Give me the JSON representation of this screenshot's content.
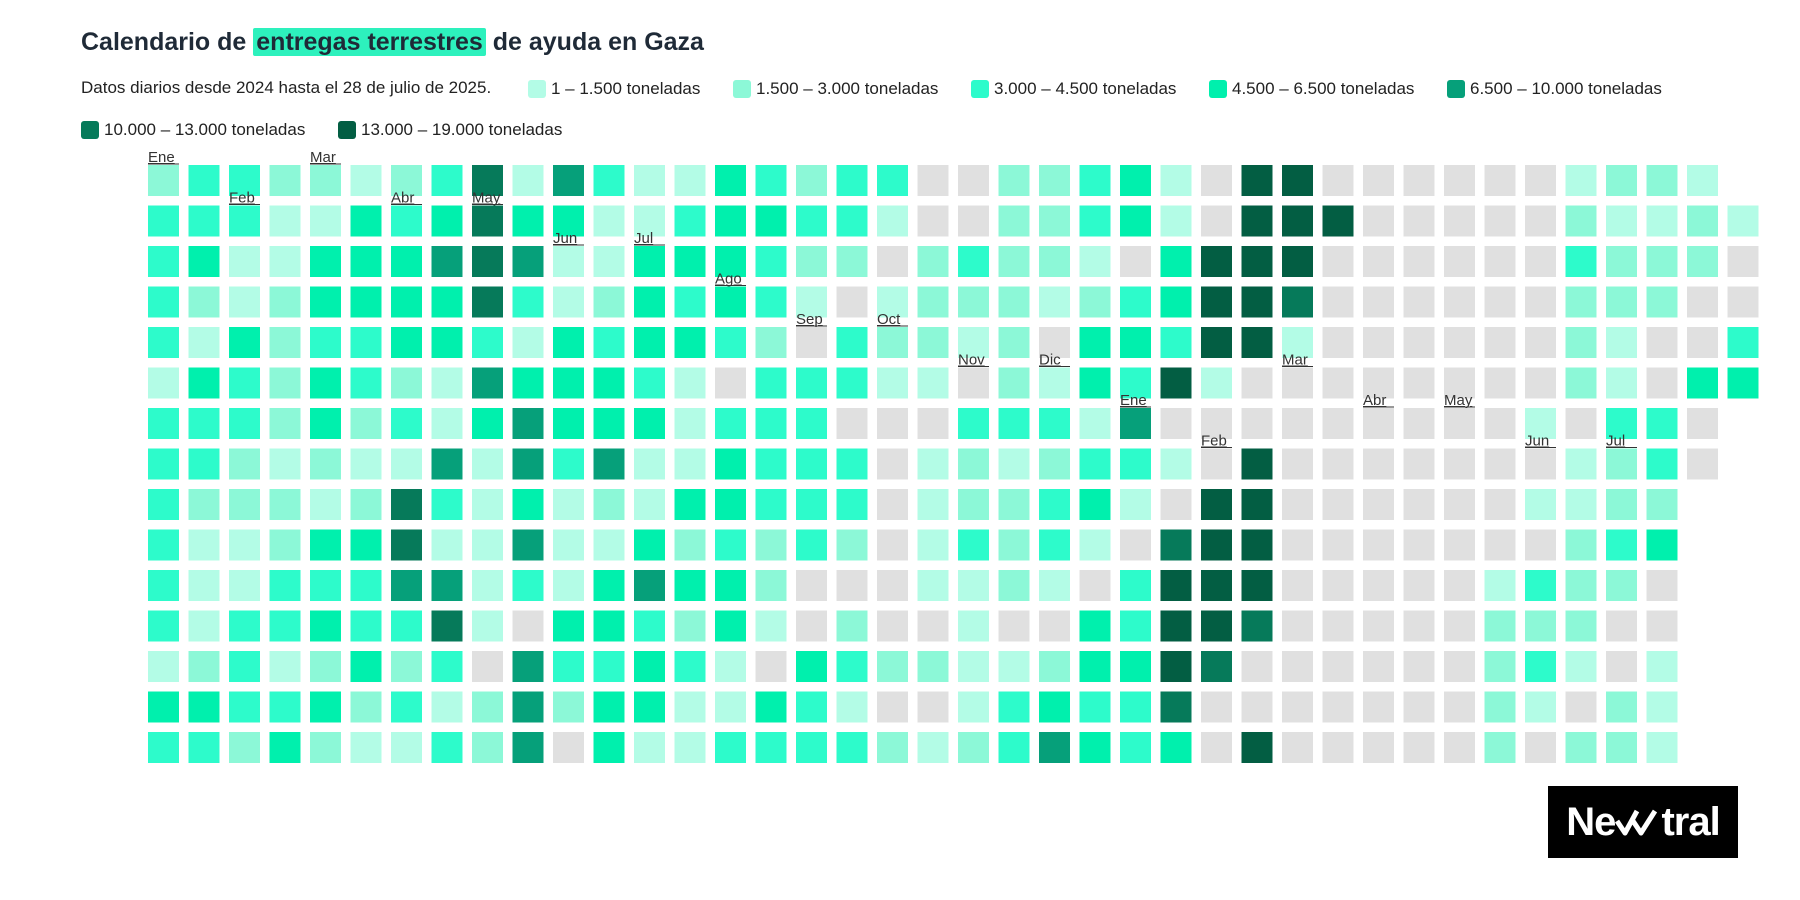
{
  "header": {
    "title_before": "Calendario de",
    "title_highlight": "entregas terrestres",
    "title_after": "de ayuda en Gaza",
    "subtitle": "Datos diarios desde 2024 hasta el 28 de julio de 2025."
  },
  "colors": {
    "highlight": "#2df1bd",
    "no_data": "#e0e0e0",
    "bins": [
      "#b3fce6",
      "#8cf8d7",
      "#2dfbcb",
      "#00f0ad",
      "#06a07a",
      "#067a5a",
      "#035e43"
    ]
  },
  "legend": [
    {
      "label": "1 – 1.500 toneladas",
      "color": "#b3fce6"
    },
    {
      "label": "1.500 – 3.000 toneladas",
      "color": "#8cf8d7"
    },
    {
      "label": "3.000 – 4.500 toneladas",
      "color": "#2dfbcb"
    },
    {
      "label": "4.500 – 6.500 toneladas",
      "color": "#00f0ad"
    },
    {
      "label": "6.500 – 10.000 toneladas",
      "color": "#06a07a"
    },
    {
      "label": "10.000 – 13.000 toneladas",
      "color": "#067a5a"
    },
    {
      "label": "13.000 – 19.000 toneladas",
      "color": "#035e43"
    }
  ],
  "chart_data": {
    "type": "heatmap",
    "title": "Calendario de entregas terrestres de ayuda en Gaza",
    "subtitle": "Datos diarios desde 2024 hasta el 28 de julio de 2025.",
    "units": "toneladas",
    "bins": [
      "1 – 1.500",
      "1.500 – 3.000",
      "3.000 – 4.500",
      "4.500 – 6.500",
      "6.500 – 10.000",
      "10.000 – 13.000",
      "13.000 – 19.000"
    ],
    "encoding": "grid[row][column] = bin index (0 = sin datos, 1-7 = rango de toneladas); -1 = sin celda",
    "month_labels": [
      {
        "label": "Ene",
        "col": 0,
        "row": 0
      },
      {
        "label": "Feb",
        "col": 2,
        "row": 1
      },
      {
        "label": "Mar",
        "col": 4,
        "row": 0
      },
      {
        "label": "Abr",
        "col": 6,
        "row": 1
      },
      {
        "label": "May",
        "col": 8,
        "row": 1
      },
      {
        "label": "Jun",
        "col": 10,
        "row": 2
      },
      {
        "label": "Jul",
        "col": 12,
        "row": 2
      },
      {
        "label": "Ago",
        "col": 14,
        "row": 3
      },
      {
        "label": "Sep",
        "col": 16,
        "row": 4
      },
      {
        "label": "Oct",
        "col": 18,
        "row": 4
      },
      {
        "label": "Nov",
        "col": 20,
        "row": 5
      },
      {
        "label": "Dic",
        "col": 22,
        "row": 5
      },
      {
        "label": "Ene",
        "col": 24,
        "row": 6
      },
      {
        "label": "Feb",
        "col": 26,
        "row": 7
      },
      {
        "label": "Mar",
        "col": 28,
        "row": 5
      },
      {
        "label": "Abr",
        "col": 30,
        "row": 6
      },
      {
        "label": "May",
        "col": 32,
        "row": 6
      },
      {
        "label": "Jun",
        "col": 34,
        "row": 7
      },
      {
        "label": "Jul",
        "col": 36,
        "row": 7
      }
    ],
    "grid": [
      [
        2,
        3,
        3,
        2,
        2,
        1,
        2,
        3,
        6,
        1,
        5,
        3,
        1,
        1,
        4,
        3,
        2,
        3,
        3,
        0,
        0,
        2,
        2,
        3,
        4,
        1,
        0,
        7,
        7,
        0,
        0,
        0,
        0,
        0,
        0,
        1,
        2,
        2,
        1
      ],
      [
        3,
        3,
        3,
        1,
        1,
        4,
        3,
        4,
        6,
        4,
        4,
        1,
        1,
        3,
        4,
        4,
        3,
        3,
        1,
        0,
        0,
        2,
        2,
        3,
        4,
        1,
        0,
        7,
        7,
        7,
        0,
        0,
        0,
        0,
        0,
        2,
        1,
        1,
        2,
        1
      ],
      [
        3,
        4,
        1,
        1,
        4,
        4,
        4,
        5,
        6,
        5,
        1,
        1,
        4,
        4,
        4,
        3,
        2,
        2,
        0,
        2,
        3,
        2,
        2,
        1,
        0,
        4,
        7,
        7,
        7,
        0,
        0,
        0,
        0,
        0,
        0,
        3,
        2,
        2,
        2,
        0
      ],
      [
        3,
        2,
        1,
        2,
        4,
        4,
        4,
        4,
        6,
        3,
        1,
        2,
        4,
        3,
        4,
        3,
        1,
        0,
        1,
        2,
        2,
        2,
        1,
        2,
        3,
        4,
        7,
        7,
        6,
        0,
        0,
        0,
        0,
        0,
        0,
        2,
        2,
        2,
        0,
        0
      ],
      [
        3,
        1,
        4,
        2,
        3,
        3,
        4,
        4,
        3,
        1,
        4,
        3,
        4,
        4,
        3,
        2,
        0,
        3,
        2,
        2,
        1,
        2,
        0,
        4,
        4,
        3,
        7,
        7,
        1,
        0,
        0,
        0,
        0,
        0,
        0,
        2,
        1,
        0,
        0,
        3
      ],
      [
        1,
        4,
        3,
        2,
        4,
        3,
        2,
        1,
        5,
        4,
        4,
        4,
        3,
        1,
        0,
        3,
        3,
        3,
        1,
        1,
        0,
        2,
        1,
        4,
        3,
        7,
        1,
        0,
        0,
        0,
        0,
        0,
        0,
        0,
        0,
        2,
        1,
        0,
        4,
        4
      ],
      [
        3,
        3,
        3,
        2,
        4,
        2,
        3,
        1,
        4,
        5,
        4,
        4,
        4,
        1,
        3,
        3,
        3,
        0,
        0,
        0,
        3,
        3,
        3,
        1,
        5,
        0,
        0,
        0,
        0,
        0,
        0,
        0,
        0,
        0,
        1,
        0,
        3,
        3,
        0
      ],
      [
        3,
        3,
        2,
        1,
        2,
        1,
        1,
        5,
        1,
        5,
        3,
        5,
        1,
        1,
        4,
        3,
        3,
        3,
        0,
        1,
        2,
        1,
        2,
        3,
        3,
        1,
        0,
        7,
        0,
        0,
        0,
        0,
        0,
        0,
        0,
        1,
        2,
        3,
        0
      ],
      [
        3,
        2,
        2,
        2,
        1,
        2,
        6,
        3,
        1,
        4,
        1,
        2,
        1,
        4,
        4,
        3,
        3,
        3,
        0,
        1,
        2,
        2,
        3,
        4,
        1,
        0,
        7,
        7,
        0,
        0,
        0,
        0,
        0,
        0,
        1,
        1,
        2,
        2,
        -1
      ],
      [
        3,
        1,
        1,
        2,
        4,
        4,
        6,
        1,
        1,
        5,
        1,
        1,
        4,
        2,
        3,
        2,
        3,
        2,
        0,
        1,
        3,
        2,
        3,
        1,
        0,
        6,
        7,
        7,
        0,
        0,
        0,
        0,
        0,
        0,
        0,
        2,
        3,
        4,
        -1
      ],
      [
        3,
        1,
        1,
        3,
        3,
        3,
        5,
        5,
        1,
        3,
        1,
        4,
        5,
        4,
        4,
        2,
        0,
        0,
        0,
        1,
        1,
        2,
        1,
        0,
        3,
        7,
        7,
        7,
        0,
        0,
        0,
        0,
        0,
        1,
        3,
        2,
        2,
        0,
        -1
      ],
      [
        3,
        1,
        3,
        3,
        4,
        3,
        3,
        6,
        1,
        0,
        4,
        4,
        3,
        2,
        4,
        1,
        0,
        2,
        0,
        0,
        1,
        0,
        0,
        4,
        3,
        7,
        7,
        6,
        0,
        0,
        0,
        0,
        0,
        2,
        2,
        2,
        0,
        0,
        -1
      ],
      [
        1,
        2,
        3,
        1,
        2,
        4,
        2,
        3,
        0,
        5,
        3,
        3,
        4,
        3,
        1,
        0,
        4,
        3,
        2,
        2,
        1,
        1,
        2,
        4,
        4,
        7,
        6,
        0,
        0,
        0,
        0,
        0,
        0,
        2,
        3,
        1,
        0,
        1,
        -1
      ],
      [
        4,
        4,
        3,
        3,
        4,
        2,
        3,
        1,
        2,
        5,
        2,
        4,
        4,
        1,
        1,
        4,
        3,
        1,
        0,
        0,
        1,
        3,
        4,
        3,
        3,
        6,
        0,
        0,
        0,
        0,
        0,
        0,
        0,
        2,
        1,
        0,
        2,
        1,
        -1
      ],
      [
        3,
        3,
        2,
        4,
        2,
        1,
        1,
        3,
        2,
        5,
        0,
        4,
        1,
        1,
        3,
        3,
        3,
        3,
        2,
        1,
        2,
        3,
        5,
        4,
        3,
        4,
        0,
        7,
        0,
        0,
        0,
        0,
        0,
        2,
        0,
        2,
        2,
        1,
        -1
      ]
    ]
  },
  "brand": {
    "name_left": "Ne",
    "name_right": "tral",
    "mark_icon": "double-check-icon"
  }
}
